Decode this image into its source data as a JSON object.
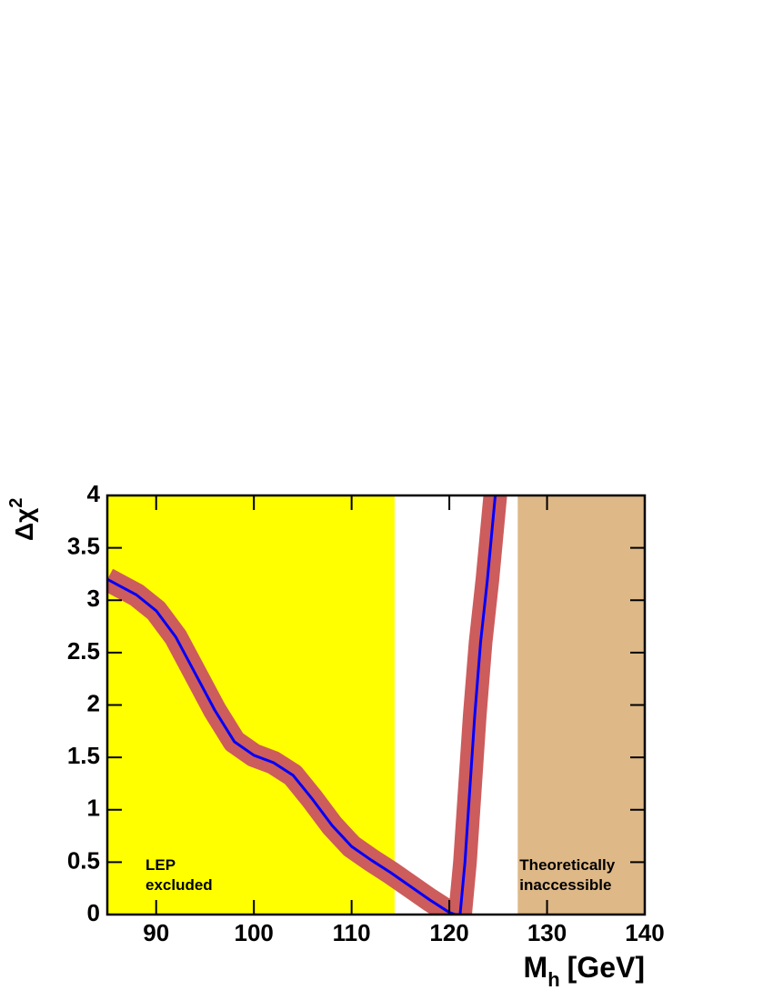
{
  "chart_data": {
    "type": "line",
    "xlabel": {
      "text": "M",
      "sub": "h",
      "unit": "[GeV]"
    },
    "ylabel": {
      "text": "Δχ",
      "sup": "2"
    },
    "xlim": [
      85,
      140
    ],
    "xticks": [
      90,
      100,
      110,
      120,
      130,
      140
    ],
    "ylim": [
      0,
      4
    ],
    "yticks": [
      0,
      0.5,
      1,
      1.5,
      2,
      2.5,
      3,
      3.5,
      4
    ],
    "regions": [
      {
        "label": [
          "LEP",
          "excluded"
        ],
        "xlim": [
          85,
          114.4
        ],
        "color": "#ffff00"
      },
      {
        "label": [
          "Theoretically",
          "inaccessible"
        ],
        "xlim": [
          127,
          140
        ],
        "color": "#deb887"
      }
    ],
    "series": [
      {
        "color": "#0000ff",
        "band_color": "#cd5c5c",
        "x": [
          85,
          88,
          90,
          92,
          94,
          96,
          98,
          100,
          102,
          104,
          106,
          108,
          110,
          112,
          114,
          116,
          118,
          120,
          120.6,
          121.1,
          121.6,
          122.1,
          122.6,
          123.2,
          123.9,
          124.3,
          124.7
        ],
        "values": [
          3.2,
          3.05,
          2.9,
          2.65,
          2.3,
          1.95,
          1.65,
          1.52,
          1.45,
          1.33,
          1.1,
          0.85,
          0.65,
          0.52,
          0.4,
          0.27,
          0.14,
          0.02,
          0,
          0,
          0.5,
          1.2,
          1.9,
          2.6,
          3.2,
          3.6,
          4
        ]
      }
    ]
  }
}
